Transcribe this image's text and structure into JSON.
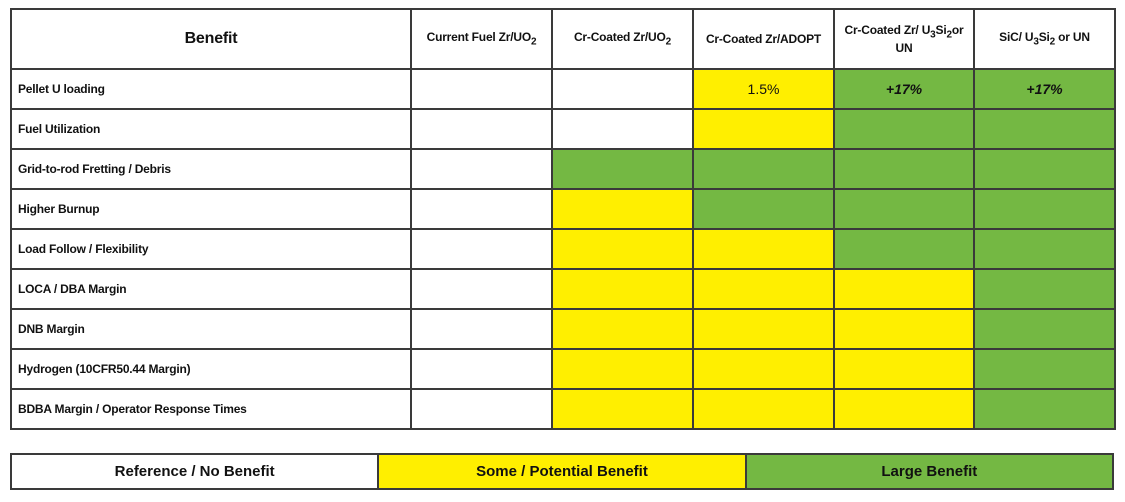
{
  "colors": {
    "none": "#ffffff",
    "some": "#ffef00",
    "large": "#74b843"
  },
  "chart_data": {
    "type": "table",
    "title": "",
    "row_header_label": "Benefit",
    "columns": [
      {
        "pre": "Current Fuel Zr/UO",
        "sub": "2",
        "post": ""
      },
      {
        "pre": "Cr-Coated Zr/UO",
        "sub": "2",
        "post": ""
      },
      {
        "pre": "Cr-Coated Zr/ADOPT",
        "sub": "",
        "post": ""
      },
      {
        "pre": "Cr-Coated Zr/ U",
        "sub": "3",
        "mid": "Si",
        "sub2": "2",
        "post": "or UN"
      },
      {
        "pre": "SiC/ U",
        "sub": "3",
        "mid": "Si",
        "sub2": "2",
        "post": " or UN"
      }
    ],
    "rows": [
      {
        "label": "Pellet U loading",
        "cells": [
          {
            "level": "none",
            "text": ""
          },
          {
            "level": "none",
            "text": ""
          },
          {
            "level": "some",
            "text": "1.5%"
          },
          {
            "level": "large",
            "text": "+17%"
          },
          {
            "level": "large",
            "text": "+17%"
          }
        ]
      },
      {
        "label": "Fuel Utilization",
        "cells": [
          {
            "level": "none",
            "text": ""
          },
          {
            "level": "none",
            "text": ""
          },
          {
            "level": "some",
            "text": ""
          },
          {
            "level": "large",
            "text": ""
          },
          {
            "level": "large",
            "text": ""
          }
        ]
      },
      {
        "label": "Grid-to-rod Fretting / Debris",
        "cells": [
          {
            "level": "none",
            "text": ""
          },
          {
            "level": "large",
            "text": ""
          },
          {
            "level": "large",
            "text": ""
          },
          {
            "level": "large",
            "text": ""
          },
          {
            "level": "large",
            "text": ""
          }
        ]
      },
      {
        "label": "Higher Burnup",
        "cells": [
          {
            "level": "none",
            "text": ""
          },
          {
            "level": "some",
            "text": ""
          },
          {
            "level": "large",
            "text": ""
          },
          {
            "level": "large",
            "text": ""
          },
          {
            "level": "large",
            "text": ""
          }
        ]
      },
      {
        "label": "Load Follow / Flexibility",
        "cells": [
          {
            "level": "none",
            "text": ""
          },
          {
            "level": "some",
            "text": ""
          },
          {
            "level": "some",
            "text": ""
          },
          {
            "level": "large",
            "text": ""
          },
          {
            "level": "large",
            "text": ""
          }
        ]
      },
      {
        "label": "LOCA / DBA Margin",
        "cells": [
          {
            "level": "none",
            "text": ""
          },
          {
            "level": "some",
            "text": ""
          },
          {
            "level": "some",
            "text": ""
          },
          {
            "level": "some",
            "text": ""
          },
          {
            "level": "large",
            "text": ""
          }
        ]
      },
      {
        "label": "DNB Margin",
        "cells": [
          {
            "level": "none",
            "text": ""
          },
          {
            "level": "some",
            "text": ""
          },
          {
            "level": "some",
            "text": ""
          },
          {
            "level": "some",
            "text": ""
          },
          {
            "level": "large",
            "text": ""
          }
        ]
      },
      {
        "label": "Hydrogen (10CFR50.44 Margin)",
        "cells": [
          {
            "level": "none",
            "text": ""
          },
          {
            "level": "some",
            "text": ""
          },
          {
            "level": "some",
            "text": ""
          },
          {
            "level": "some",
            "text": ""
          },
          {
            "level": "large",
            "text": ""
          }
        ]
      },
      {
        "label": "BDBA Margin / Operator Response Times",
        "cells": [
          {
            "level": "none",
            "text": ""
          },
          {
            "level": "some",
            "text": ""
          },
          {
            "level": "some",
            "text": ""
          },
          {
            "level": "some",
            "text": ""
          },
          {
            "level": "large",
            "text": ""
          }
        ]
      }
    ],
    "legend": [
      {
        "level": "none",
        "label": "Reference / No Benefit"
      },
      {
        "level": "some",
        "label": "Some / Potential Benefit"
      },
      {
        "level": "large",
        "label": "Large Benefit"
      }
    ],
    "legend_position": "bottom"
  }
}
